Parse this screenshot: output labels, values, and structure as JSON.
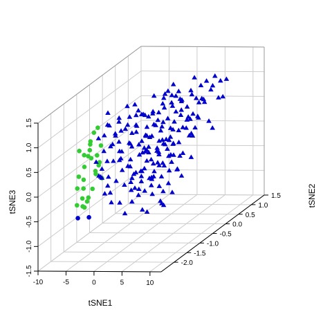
{
  "chart_data": {
    "type": "scatter",
    "projection": "3d",
    "xlabel": "tSNE1",
    "ylabel": "tSNE2",
    "zlabel": "tSNE3",
    "xlim": [
      -10,
      12
    ],
    "ylim": [
      -2.5,
      1.5
    ],
    "zlim": [
      -1.5,
      1.5
    ],
    "x_ticks": [
      "-10",
      "-5",
      "0",
      "5",
      "10"
    ],
    "x_tick_values": [
      -10,
      -5,
      0,
      5,
      10
    ],
    "y_ticks": [
      "-2.0",
      "-1.5",
      "-1.0",
      "-0.5",
      "0.0",
      "0.5",
      "1.0",
      "1.5"
    ],
    "y_tick_values": [
      -2.0,
      -1.5,
      -1.0,
      -0.5,
      0.0,
      0.5,
      1.0,
      1.5
    ],
    "z_ticks": [
      "-1.5",
      "-1.0",
      "-0.5",
      "0.0",
      "0.5",
      "1.0",
      "1.5"
    ],
    "z_tick_values": [
      -1.5,
      -1.0,
      -0.5,
      0.0,
      0.5,
      1.0,
      1.5
    ],
    "grid": true,
    "box": true,
    "series": [
      {
        "marker": "circle",
        "color": "#33cc33",
        "points": [
          [
            -3.6,
            -2.1,
            0.7
          ],
          [
            -3.4,
            -1.9,
            0.9
          ],
          [
            -3.1,
            -2.2,
            0.5
          ],
          [
            -3.7,
            -1.7,
            1.0
          ],
          [
            -2.8,
            -2.0,
            0.6
          ],
          [
            -3.3,
            -1.6,
            0.3
          ],
          [
            -3.9,
            -2.3,
            0.1
          ],
          [
            -2.9,
            -1.8,
            0.2
          ],
          [
            -3.5,
            -2.4,
            -0.2
          ],
          [
            -3.2,
            -1.5,
            0.0
          ],
          [
            -2.6,
            -2.1,
            0.8
          ],
          [
            -4.0,
            -2.0,
            -0.4
          ],
          [
            -3.0,
            -2.3,
            -0.1
          ],
          [
            -2.7,
            -1.7,
            0.4
          ],
          [
            -3.8,
            -1.9,
            0.6
          ],
          [
            -3.4,
            -2.2,
            -0.3
          ],
          [
            -2.5,
            -1.9,
            0.3
          ],
          [
            -3.6,
            -1.6,
            0.5
          ],
          [
            -3.1,
            -2.4,
            0.9
          ],
          [
            -4.1,
            -2.2,
            0.3
          ],
          [
            -2.9,
            -1.6,
            0.7
          ],
          [
            -3.3,
            -2.0,
            -0.2
          ],
          [
            -3.7,
            -2.1,
            0.2
          ],
          [
            -2.8,
            -2.3,
            0.1
          ],
          [
            -3.5,
            -1.8,
            -0.1
          ],
          [
            -3.0,
            -1.7,
            1.1
          ],
          [
            -3.9,
            -1.8,
            0.8
          ],
          [
            -2.6,
            -2.2,
            -0.2
          ]
        ]
      },
      {
        "marker": "circle",
        "color": "#0000cc",
        "points": [
          [
            -3.8,
            -2.3,
            -0.5
          ],
          [
            -3.2,
            -2.0,
            -0.6
          ]
        ]
      },
      {
        "marker": "triangle",
        "color": "#0000cc",
        "points": [
          [
            -1.5,
            -2.0,
            1.0
          ],
          [
            -0.8,
            -1.8,
            1.2
          ],
          [
            0.2,
            -1.9,
            0.8
          ],
          [
            -1.0,
            -2.2,
            0.6
          ],
          [
            0.8,
            -1.7,
            1.3
          ],
          [
            1.5,
            -2.0,
            1.1
          ],
          [
            -0.3,
            -1.6,
            0.9
          ],
          [
            2.2,
            -1.9,
            0.7
          ],
          [
            0.5,
            -2.3,
            0.5
          ],
          [
            1.0,
            -1.5,
            1.0
          ],
          [
            2.8,
            -1.8,
            1.2
          ],
          [
            -1.2,
            -1.7,
            1.4
          ],
          [
            3.2,
            -2.1,
            0.4
          ],
          [
            1.8,
            -1.6,
            1.5
          ],
          [
            0.0,
            -2.1,
            1.1
          ],
          [
            2.5,
            -1.4,
            0.9
          ],
          [
            4.0,
            -1.9,
            0.8
          ],
          [
            -0.6,
            -1.4,
            0.7
          ],
          [
            3.5,
            -1.6,
            1.1
          ],
          [
            1.2,
            -2.2,
            0.3
          ],
          [
            4.5,
            -2.0,
            0.2
          ],
          [
            5.0,
            -1.7,
            0.6
          ],
          [
            2.0,
            -1.3,
            1.2
          ],
          [
            4.2,
            -1.5,
            1.3
          ],
          [
            0.8,
            -1.2,
            0.8
          ],
          [
            5.8,
            -1.9,
            0.3
          ],
          [
            3.0,
            -1.2,
            0.5
          ],
          [
            6.2,
            -1.6,
            0.9
          ],
          [
            1.6,
            -1.0,
            1.1
          ],
          [
            5.5,
            -1.3,
            1.0
          ],
          [
            2.6,
            -0.9,
            0.6
          ],
          [
            7.0,
            -1.8,
            0.5
          ],
          [
            3.8,
            -1.0,
            0.9
          ],
          [
            6.5,
            -1.4,
            1.3
          ],
          [
            0.4,
            -1.0,
            1.3
          ],
          [
            4.8,
            -1.1,
            0.4
          ],
          [
            7.5,
            -1.6,
            0.8
          ],
          [
            2.2,
            -0.7,
            1.0
          ],
          [
            5.2,
            -0.9,
            1.2
          ],
          [
            8.0,
            -1.9,
            0.3
          ],
          [
            3.4,
            -0.6,
            0.7
          ],
          [
            6.0,
            -1.0,
            0.6
          ],
          [
            1.0,
            -0.6,
            0.9
          ],
          [
            7.2,
            -1.2,
            1.1
          ],
          [
            4.4,
            -0.7,
            1.4
          ],
          [
            8.5,
            -1.5,
            0.6
          ],
          [
            2.8,
            -0.4,
            1.2
          ],
          [
            5.6,
            -0.6,
            0.8
          ],
          [
            9.0,
            -1.8,
            0.9
          ],
          [
            6.8,
            -0.8,
            1.4
          ],
          [
            3.9,
            -0.3,
            1.0
          ],
          [
            8.2,
            -1.1,
            1.2
          ],
          [
            1.8,
            -0.3,
            0.5
          ],
          [
            7.8,
            -0.9,
            0.5
          ],
          [
            5.0,
            -0.3,
            1.3
          ],
          [
            9.5,
            -1.5,
            0.7
          ],
          [
            6.4,
            -0.5,
            1.0
          ],
          [
            4.0,
            0.0,
            0.7
          ],
          [
            8.8,
            -1.0,
            1.4
          ],
          [
            2.4,
            0.0,
            1.1
          ],
          [
            7.4,
            -0.5,
            0.8
          ],
          [
            5.8,
            0.0,
            1.2
          ],
          [
            10.0,
            -1.7,
            1.1
          ],
          [
            3.2,
            0.2,
            0.9
          ],
          [
            9.2,
            -0.8,
            0.6
          ],
          [
            6.9,
            -0.1,
            1.5
          ],
          [
            4.6,
            0.3,
            1.0
          ],
          [
            8.6,
            -0.4,
            1.2
          ],
          [
            1.4,
            -1.4,
            0.2
          ],
          [
            2.9,
            -1.7,
            0.0
          ],
          [
            4.8,
            -1.8,
            -0.1
          ],
          [
            6.6,
            -1.7,
            0.1
          ],
          [
            0.6,
            -2.0,
            -0.1
          ],
          [
            3.6,
            -2.1,
            0.1
          ],
          [
            5.4,
            -2.2,
            -0.2
          ],
          [
            7.6,
            -2.0,
            0.2
          ],
          [
            8.9,
            -1.9,
            0.0
          ],
          [
            2.0,
            -2.4,
            0.2
          ],
          [
            6.2,
            -2.3,
            0.4
          ],
          [
            9.8,
            -2.1,
            0.5
          ],
          [
            -0.2,
            -2.2,
            0.3
          ],
          [
            1.2,
            -1.9,
            0.1
          ],
          [
            4.4,
            -1.5,
            0.2
          ],
          [
            7.0,
            -1.4,
            0.0
          ],
          [
            8.4,
            -1.6,
            0.3
          ],
          [
            10.5,
            -1.8,
            0.6
          ],
          [
            3.0,
            -1.1,
            0.2
          ],
          [
            5.3,
            -1.2,
            0.5
          ],
          [
            9.6,
            -1.3,
            0.9
          ],
          [
            0.2,
            -1.5,
            0.4
          ],
          [
            2.6,
            -1.3,
            0.4
          ],
          [
            6.0,
            -1.5,
            0.3
          ],
          [
            10.8,
            -1.4,
            1.0
          ],
          [
            1.6,
            -0.8,
            0.3
          ],
          [
            4.2,
            -0.9,
            0.3
          ],
          [
            7.9,
            -1.3,
            0.7
          ],
          [
            9.4,
            -0.7,
            1.0
          ],
          [
            5.9,
            -0.7,
            0.4
          ],
          [
            10.2,
            -1.1,
            1.3
          ],
          [
            3.5,
            -0.5,
            0.3
          ],
          [
            8.1,
            -0.6,
            0.9
          ],
          [
            6.6,
            -0.2,
            0.7
          ],
          [
            10.7,
            -0.9,
            0.8
          ],
          [
            4.5,
            0.1,
            0.4
          ],
          [
            9.0,
            -0.2,
            1.1
          ],
          [
            7.3,
            0.1,
            1.0
          ],
          [
            11.0,
            -0.6,
            1.2
          ],
          [
            5.4,
            0.4,
            0.8
          ],
          [
            9.7,
            0.0,
            1.3
          ],
          [
            8.0,
            0.3,
            1.1
          ],
          [
            10.4,
            -0.3,
            0.7
          ],
          [
            6.3,
            0.5,
            1.2
          ],
          [
            3.0,
            -2.4,
            0.7
          ],
          [
            0.9,
            -2.1,
            1.3
          ],
          [
            5.6,
            -2.4,
            0.6
          ],
          [
            8.4,
            -2.2,
            0.8
          ],
          [
            -0.9,
            -2.0,
            0.2
          ],
          [
            2.4,
            -2.3,
            1.0
          ],
          [
            4.1,
            -2.4,
            0.9
          ],
          [
            7.1,
            -2.3,
            1.0
          ],
          [
            10.1,
            -2.0,
            0.9
          ],
          [
            11.2,
            -1.6,
            0.5
          ],
          [
            11.4,
            -1.2,
            0.8
          ],
          [
            1.9,
            -1.5,
            0.7
          ],
          [
            3.7,
            -1.3,
            0.8
          ],
          [
            5.1,
            -1.6,
            0.9
          ],
          [
            6.9,
            -1.1,
            0.3
          ],
          [
            8.7,
            -1.3,
            0.4
          ],
          [
            2.1,
            -1.1,
            0.6
          ],
          [
            4.7,
            -1.4,
            0.6
          ],
          [
            6.4,
            -1.9,
            0.7
          ],
          [
            9.3,
            -1.6,
            0.2
          ],
          [
            0.3,
            -1.2,
            0.6
          ],
          [
            1.3,
            -2.4,
            0.9
          ],
          [
            3.3,
            -1.8,
            0.5
          ],
          [
            5.7,
            -1.9,
            0.2
          ],
          [
            7.7,
            -1.7,
            0.4
          ],
          [
            9.9,
            -1.2,
            0.4
          ],
          [
            11.3,
            -0.9,
            1.0
          ],
          [
            4.9,
            -0.5,
            0.6
          ],
          [
            7.5,
            -0.3,
            0.4
          ],
          [
            10.6,
            0.2,
            1.0
          ],
          [
            6.1,
            0.2,
            0.6
          ],
          [
            8.9,
            0.4,
            0.9
          ],
          [
            11.1,
            0.0,
            1.4
          ],
          [
            7.8,
            0.5,
            1.3
          ],
          [
            9.4,
            0.6,
            1.2
          ],
          [
            3.8,
            -1.6,
            -0.3
          ],
          [
            2.3,
            -2.0,
            -0.3
          ],
          [
            6.8,
            -2.1,
            -0.4
          ],
          [
            8.3,
            -1.6,
            -0.5
          ],
          [
            4.6,
            -2.3,
            -0.4
          ],
          [
            9.1,
            -1.9,
            -0.3
          ],
          [
            7.3,
            -1.4,
            -0.3
          ],
          [
            5.8,
            -1.7,
            -0.6
          ],
          [
            3.1,
            -2.5,
            -0.1
          ],
          [
            10.3,
            -1.7,
            -0.2
          ],
          [
            8.6,
            -2.4,
            0.1
          ],
          [
            6.1,
            -1.6,
            -0.1
          ],
          [
            11.0,
            -2.0,
            0.1
          ],
          [
            5.2,
            -1.0,
            -0.7
          ],
          [
            1.0,
            -2.3,
            0.0
          ],
          [
            0.7,
            -1.6,
            1.0
          ],
          [
            -0.4,
            -1.9,
            0.5
          ],
          [
            2.7,
            -2.1,
            0.6
          ],
          [
            4.3,
            -1.8,
            1.2
          ],
          [
            6.7,
            -1.9,
            1.2
          ],
          [
            8.2,
            -1.8,
            1.3
          ],
          [
            3.6,
            -1.9,
            1.4
          ],
          [
            5.9,
            -1.8,
            1.4
          ],
          [
            1.7,
            -1.9,
            1.3
          ],
          [
            7.6,
            -2.1,
            1.1
          ],
          [
            9.6,
            -1.9,
            1.3
          ],
          [
            10.9,
            -1.9,
            1.0
          ],
          [
            4.1,
            -1.1,
            1.2
          ],
          [
            6.3,
            -1.2,
            1.4
          ],
          [
            8.8,
            -1.4,
            1.5
          ],
          [
            2.9,
            -0.8,
            1.4
          ],
          [
            5.4,
            -0.8,
            1.5
          ],
          [
            7.1,
            -0.7,
            1.3
          ],
          [
            0.1,
            -0.8,
            1.1
          ],
          [
            9.9,
            -0.5,
            1.5
          ],
          [
            3.6,
            -0.2,
            1.4
          ],
          [
            11.5,
            -0.4,
            0.6
          ],
          [
            6.5,
            -0.9,
            0.1
          ],
          [
            8.0,
            -1.0,
            0.0
          ],
          [
            4.0,
            -0.7,
            0.0
          ],
          [
            9.2,
            -1.1,
            -0.1
          ],
          [
            10.0,
            -0.9,
            0.2
          ],
          [
            2.5,
            -1.6,
            -0.2
          ],
          [
            5.0,
            -2.0,
            0.0
          ],
          [
            7.9,
            -2.4,
            0.5
          ],
          [
            0.4,
            -2.4,
            0.4
          ],
          [
            1.5,
            -1.2,
            0.0
          ],
          [
            3.4,
            -1.4,
            -0.1
          ],
          [
            5.6,
            -1.4,
            0.0
          ],
          [
            7.2,
            -1.8,
            -0.2
          ],
          [
            9.4,
            -2.3,
            0.3
          ],
          [
            10.7,
            -2.3,
            0.8
          ],
          [
            11.6,
            -1.8,
            0.3
          ]
        ]
      }
    ]
  }
}
